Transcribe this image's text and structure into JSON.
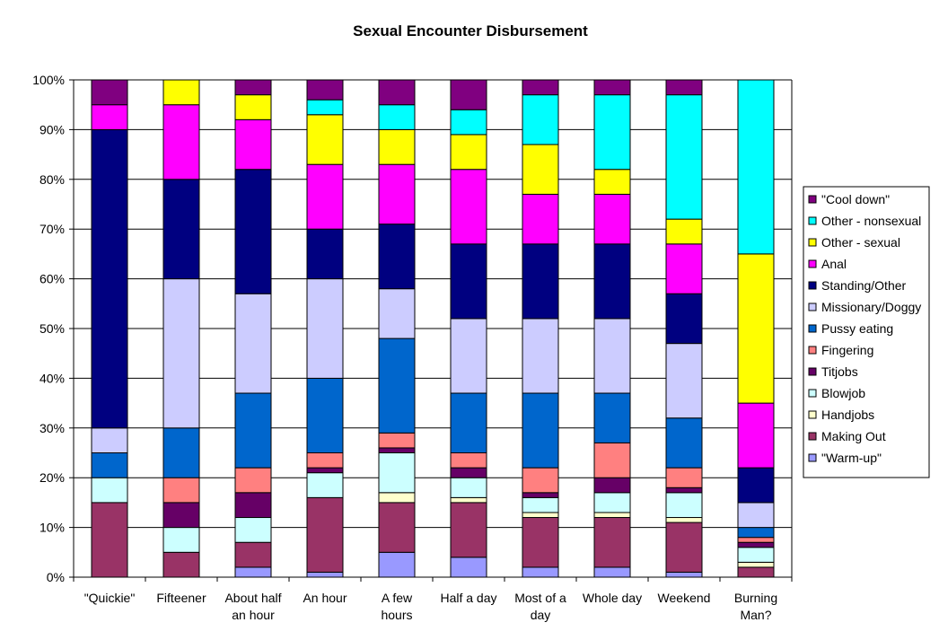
{
  "chart_data": {
    "type": "bar",
    "stacked": "percent",
    "title": "Sexual Encounter Disbursement",
    "xlabel": "",
    "ylabel": "",
    "ylim": [
      0,
      100
    ],
    "y_ticks": [
      "0%",
      "10%",
      "20%",
      "30%",
      "40%",
      "50%",
      "60%",
      "70%",
      "80%",
      "90%",
      "100%"
    ],
    "grid": true,
    "legend_position": "right",
    "categories": [
      [
        "\"Quickie\""
      ],
      [
        "Fifteener"
      ],
      [
        "About half",
        "an hour"
      ],
      [
        "An hour"
      ],
      [
        "A few",
        "hours"
      ],
      [
        "Half a day"
      ],
      [
        "Most of a",
        "day"
      ],
      [
        "Whole day"
      ],
      [
        "Weekend"
      ],
      [
        "Burning",
        "Man?"
      ]
    ],
    "series": [
      {
        "name": "\"Warm-up\"",
        "color": "#9999ff",
        "values": [
          0,
          0,
          2,
          1,
          5,
          4,
          2,
          2,
          1,
          0
        ]
      },
      {
        "name": "Making Out",
        "color": "#993366",
        "values": [
          15,
          5,
          5,
          15,
          10,
          11,
          10,
          10,
          10,
          2
        ]
      },
      {
        "name": "Handjobs",
        "color": "#ffffcc",
        "values": [
          0,
          0,
          0,
          0,
          2,
          1,
          1,
          1,
          1,
          1
        ]
      },
      {
        "name": "Blowjob",
        "color": "#ccffff",
        "values": [
          5,
          5,
          5,
          5,
          8,
          4,
          3,
          4,
          5,
          3
        ]
      },
      {
        "name": "Titjobs",
        "color": "#660066",
        "values": [
          0,
          5,
          5,
          1,
          1,
          2,
          1,
          3,
          1,
          1
        ]
      },
      {
        "name": "Fingering",
        "color": "#ff8080",
        "values": [
          0,
          5,
          5,
          3,
          3,
          3,
          5,
          7,
          4,
          1
        ]
      },
      {
        "name": "Pussy eating",
        "color": "#0066cc",
        "values": [
          5,
          10,
          15,
          15,
          19,
          12,
          15,
          10,
          10,
          2
        ]
      },
      {
        "name": "Missionary/Doggy",
        "color": "#ccccff",
        "values": [
          5,
          30,
          20,
          20,
          10,
          15,
          15,
          15,
          15,
          5
        ]
      },
      {
        "name": "Standing/Other",
        "color": "#000080",
        "values": [
          60,
          20,
          25,
          10,
          13,
          15,
          15,
          15,
          10,
          7
        ]
      },
      {
        "name": "Anal",
        "color": "#ff00ff",
        "values": [
          5,
          15,
          10,
          13,
          12,
          15,
          10,
          10,
          10,
          13
        ]
      },
      {
        "name": "Other - sexual",
        "color": "#ffff00",
        "values": [
          0,
          5,
          5,
          10,
          7,
          7,
          10,
          5,
          5,
          30
        ]
      },
      {
        "name": "Other - nonsexual",
        "color": "#00ffff",
        "values": [
          0,
          0,
          0,
          3,
          5,
          5,
          10,
          15,
          25,
          35
        ]
      },
      {
        "name": "\"Cool down\"",
        "color": "#800080",
        "values": [
          5,
          0,
          3,
          4,
          5,
          6,
          3,
          3,
          3,
          0
        ]
      }
    ]
  }
}
